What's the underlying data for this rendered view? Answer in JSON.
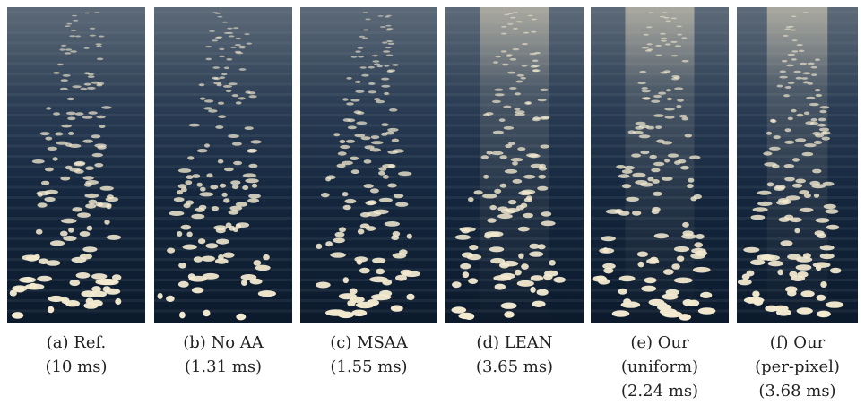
{
  "figure": {
    "panels": [
      {
        "lines": [
          "(a) Ref.",
          "(10 ms)"
        ]
      },
      {
        "lines": [
          "(b) No AA",
          "(1.31 ms)"
        ]
      },
      {
        "lines": [
          "(c) MSAA",
          "(1.55 ms)"
        ]
      },
      {
        "lines": [
          "(d) LEAN",
          "(3.65 ms)"
        ]
      },
      {
        "lines": [
          "(e) Our",
          "(uniform)",
          "(2.24 ms)"
        ]
      },
      {
        "lines": [
          "(f) Our",
          "(per-pixel)",
          "(3.68 ms)"
        ]
      }
    ]
  }
}
